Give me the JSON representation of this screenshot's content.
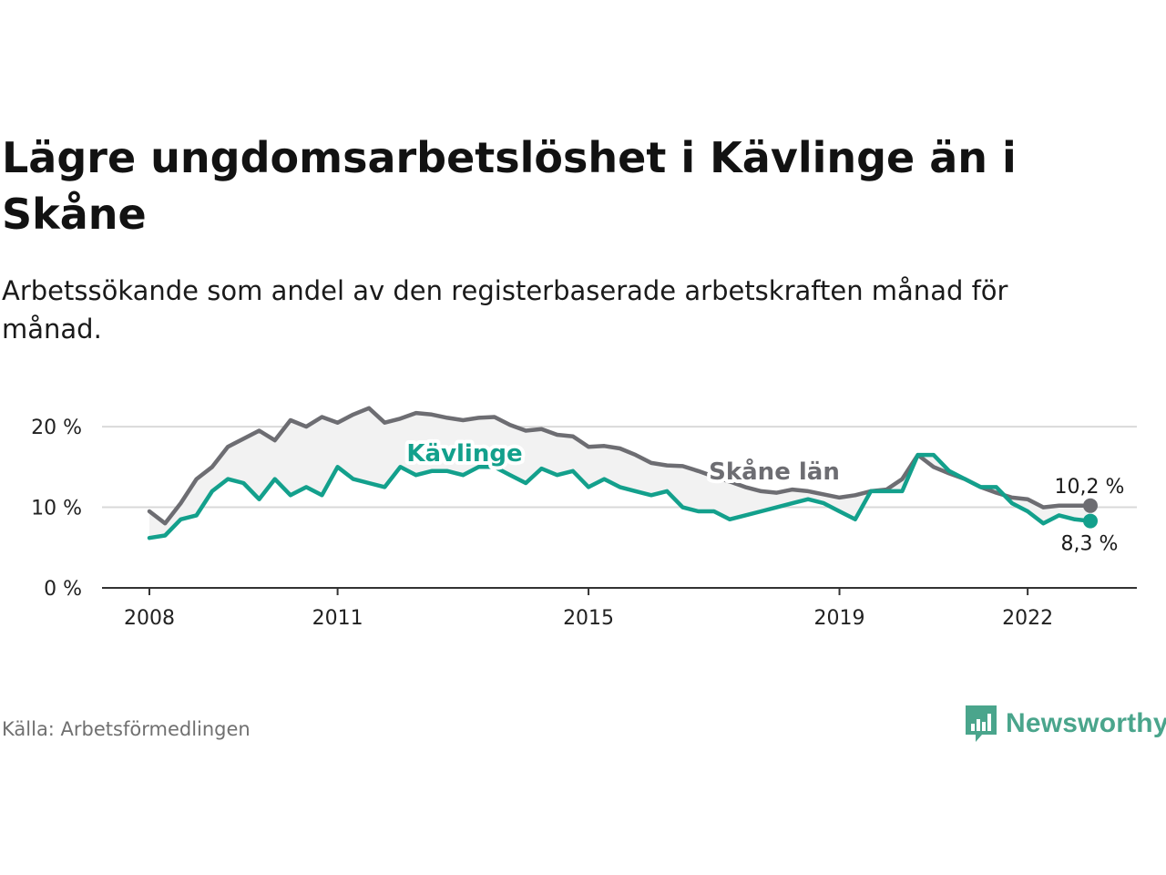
{
  "header": {
    "title": "Lägre ungdomsarbetslöshet i Kävlinge än i Skåne",
    "subtitle": "Arbetssökande som andel av den registerbaserade arbetskraften månad för månad."
  },
  "footer": {
    "source": "Källa: Arbetsförmedlingen",
    "brand": "Newsworthy",
    "brand_icon": "bar-chart-speech-bubble-icon",
    "brand_color": "#4aa58c"
  },
  "chart_data": {
    "type": "line",
    "title": "Lägre ungdomsarbetslöshet i Kävlinge än i Skåne",
    "xlabel": "",
    "ylabel": "",
    "xlim": [
      2008.0,
      2023.0
    ],
    "ylim": [
      0,
      22.5
    ],
    "x_ticks": [
      2008,
      2011,
      2015,
      2019,
      2022
    ],
    "x_tick_labels": [
      "2008",
      "2011",
      "2015",
      "2019",
      "2022"
    ],
    "y_ticks": [
      0,
      10,
      20
    ],
    "y_tick_labels": [
      "0 %",
      "10 %",
      "20 %"
    ],
    "grid": true,
    "x": [
      2008.0,
      2008.25,
      2008.5,
      2008.75,
      2009.0,
      2009.25,
      2009.5,
      2009.75,
      2010.0,
      2010.25,
      2010.5,
      2010.75,
      2011.0,
      2011.25,
      2011.5,
      2011.75,
      2012.0,
      2012.25,
      2012.5,
      2012.75,
      2013.0,
      2013.25,
      2013.5,
      2013.75,
      2014.0,
      2014.25,
      2014.5,
      2014.75,
      2015.0,
      2015.25,
      2015.5,
      2015.75,
      2016.0,
      2016.25,
      2016.5,
      2016.75,
      2017.0,
      2017.25,
      2017.5,
      2017.75,
      2018.0,
      2018.25,
      2018.5,
      2018.75,
      2019.0,
      2019.25,
      2019.5,
      2019.75,
      2020.0,
      2020.25,
      2020.5,
      2020.75,
      2021.0,
      2021.25,
      2021.5,
      2021.75,
      2022.0,
      2022.25,
      2022.5,
      2022.75,
      2023.0
    ],
    "series": [
      {
        "name": "Skåne län",
        "color": "#6d6d72",
        "end_label": "10,2 %",
        "values": [
          9.5,
          8.0,
          10.5,
          13.5,
          15.0,
          17.5,
          18.5,
          19.5,
          18.3,
          20.8,
          20.0,
          21.2,
          20.5,
          21.5,
          22.3,
          20.5,
          21.0,
          21.7,
          21.5,
          21.1,
          20.8,
          21.1,
          21.2,
          20.2,
          19.5,
          19.7,
          19.0,
          18.8,
          17.5,
          17.6,
          17.3,
          16.5,
          15.5,
          15.2,
          15.1,
          14.5,
          13.8,
          13.2,
          12.5,
          12.0,
          11.8,
          12.2,
          12.0,
          11.6,
          11.2,
          11.5,
          12.0,
          12.2,
          13.5,
          16.5,
          15.0,
          14.2,
          13.5,
          12.5,
          11.8,
          11.2,
          11.0,
          10.0,
          10.2,
          10.2,
          10.2
        ]
      },
      {
        "name": "Kävlinge",
        "color": "#13a08c",
        "end_label": "8,3 %",
        "values": [
          6.2,
          6.5,
          8.5,
          9.0,
          12.0,
          13.5,
          13.0,
          11.0,
          13.5,
          11.5,
          12.5,
          11.5,
          15.0,
          13.5,
          13.0,
          12.5,
          15.0,
          14.0,
          14.5,
          14.5,
          14.0,
          15.0,
          15.0,
          14.0,
          13.0,
          14.8,
          14.0,
          14.5,
          12.5,
          13.5,
          12.5,
          12.0,
          11.5,
          12.0,
          10.0,
          9.5,
          9.5,
          8.5,
          9.0,
          9.5,
          10.0,
          10.5,
          11.0,
          10.5,
          9.5,
          8.5,
          12.0,
          12.0,
          12.0,
          16.5,
          16.5,
          14.5,
          13.5,
          12.5,
          12.5,
          10.5,
          9.5,
          8.0,
          9.0,
          8.5,
          8.3
        ]
      }
    ],
    "annotations": [
      {
        "text": "Kävlinge",
        "series": "Kävlinge"
      },
      {
        "text": "Skåne län",
        "series": "Skåne län"
      }
    ]
  }
}
